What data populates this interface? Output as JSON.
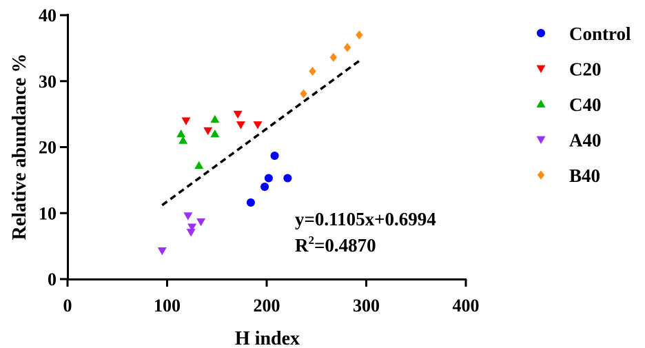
{
  "chart_data": {
    "type": "scatter",
    "xlabel": "H index",
    "ylabel": "Relative abundance %",
    "xlim": [
      0,
      400
    ],
    "ylim": [
      0,
      40
    ],
    "xticks": [
      "0",
      "100",
      "200",
      "300",
      "400"
    ],
    "yticks": [
      "0",
      "10",
      "20",
      "30",
      "40"
    ],
    "grid": false,
    "legend_position": "right",
    "series": [
      {
        "name": "Control",
        "marker": "circle",
        "color": "#0000FF",
        "points": [
          [
            184,
            11.6
          ],
          [
            198,
            14.0
          ],
          [
            202,
            15.3
          ],
          [
            208,
            18.7
          ],
          [
            221,
            15.3
          ]
        ]
      },
      {
        "name": "C20",
        "marker": "triangle-down",
        "color": "#FF0000",
        "points": [
          [
            119,
            24.0
          ],
          [
            141,
            22.5
          ],
          [
            171,
            25.0
          ],
          [
            174,
            23.4
          ],
          [
            191,
            23.4
          ]
        ]
      },
      {
        "name": "C40",
        "marker": "triangle-up",
        "color": "#00B400",
        "points": [
          [
            114,
            22.0
          ],
          [
            116,
            21.0
          ],
          [
            132,
            17.2
          ],
          [
            148,
            24.2
          ],
          [
            148,
            22.0
          ]
        ]
      },
      {
        "name": "A40",
        "marker": "triangle-down",
        "color": "#9B30FF",
        "points": [
          [
            95,
            4.3
          ],
          [
            121,
            9.6
          ],
          [
            124,
            7.1
          ],
          [
            125,
            7.9
          ],
          [
            134,
            8.7
          ]
        ]
      },
      {
        "name": "B40",
        "marker": "diamond",
        "color": "#FF8C1A",
        "points": [
          [
            237,
            28.1
          ],
          [
            246,
            31.5
          ],
          [
            267,
            33.6
          ],
          [
            281,
            35.1
          ],
          [
            293,
            37.0
          ]
        ]
      }
    ],
    "trendline": {
      "slope": 0.1105,
      "intercept": 0.6994,
      "x_range": [
        95,
        293
      ],
      "style": "dashed",
      "color": "#000000"
    },
    "annotation": {
      "equation": "y=0.1105x+0.6994",
      "r2_prefix": "R",
      "r2_sup": "2",
      "r2_value": "=0.4870"
    }
  }
}
